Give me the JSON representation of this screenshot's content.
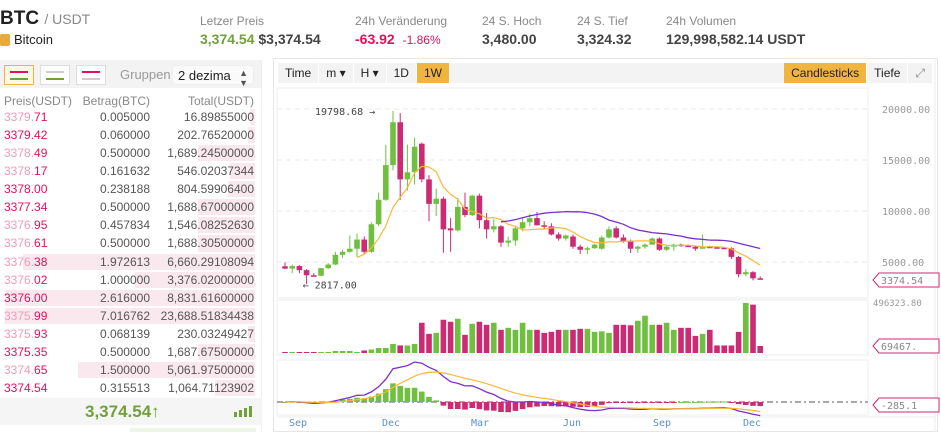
{
  "header": {
    "base": "BTC",
    "quote": "/ USDT",
    "coin_name": "Bitcoin",
    "stats": [
      {
        "label": "Letzer Preis",
        "value": "3,374.54",
        "value2": "$3,374.54"
      },
      {
        "label": "24h Veränderung",
        "value": "-63.92",
        "value2": "-1.86%"
      },
      {
        "label": "24 S. Hoch",
        "value": "3,480.00"
      },
      {
        "label": "24 S. Tief",
        "value": "3,324.32"
      },
      {
        "label": "24h Volumen",
        "value": "129,998,582.14 USDT"
      }
    ]
  },
  "orderbook": {
    "group_label": "Gruppen",
    "group_value": "2 dezima",
    "columns": [
      "Preis(USDT)",
      "Betrag(BTC)",
      "Total(USDT)"
    ],
    "asks": [
      {
        "pre": "3379.",
        "suf": "71",
        "dim": true,
        "amount": "0.005000",
        "total": "16.89855000",
        "depth": 0.02
      },
      {
        "pre": "3379.",
        "suf": "42",
        "dim": false,
        "amount": "0.060000",
        "total": "202.76520000",
        "depth": 0.03
      },
      {
        "pre": "3378.",
        "suf": "49",
        "dim": true,
        "amount": "0.500000",
        "total": "1,689.24500000",
        "depth": 0.23
      },
      {
        "pre": "3378.",
        "suf": "17",
        "dim": true,
        "amount": "0.161632",
        "total": "546.02037344",
        "depth": 0.1
      },
      {
        "pre": "3378.",
        "suf": "00",
        "dim": false,
        "amount": "0.238188",
        "total": "804.59906400",
        "depth": 0.11
      },
      {
        "pre": "3377.",
        "suf": "34",
        "dim": false,
        "amount": "0.500000",
        "total": "1,688.67000000",
        "depth": 0.23
      },
      {
        "pre": "3376.",
        "suf": "95",
        "dim": true,
        "amount": "0.457834",
        "total": "1,546.08252630",
        "depth": 0.23
      },
      {
        "pre": "3376.",
        "suf": "61",
        "dim": true,
        "amount": "0.500000",
        "total": "1,688.30500000",
        "depth": 0.23
      },
      {
        "pre": "3376.",
        "suf": "38",
        "dim": true,
        "amount": "1.972613",
        "total": "6,660.29108094",
        "depth": 0.93
      },
      {
        "pre": "3376.",
        "suf": "02",
        "dim": true,
        "amount": "1.000000",
        "total": "3,376.02000000",
        "depth": 0.48
      },
      {
        "pre": "3376.",
        "suf": "00",
        "dim": false,
        "amount": "2.616000",
        "total": "8,831.61600000",
        "depth": 1.0
      },
      {
        "pre": "3375.",
        "suf": "99",
        "dim": true,
        "amount": "7.016762",
        "total": "23,688.51834438",
        "depth": 1.0
      },
      {
        "pre": "3375.",
        "suf": "93",
        "dim": true,
        "amount": "0.068139",
        "total": "230.03249427",
        "depth": 0.03
      },
      {
        "pre": "3375.",
        "suf": "35",
        "dim": false,
        "amount": "0.500000",
        "total": "1,687.67500000",
        "depth": 0.23
      },
      {
        "pre": "3374.",
        "suf": "65",
        "dim": true,
        "amount": "1.500000",
        "total": "5,061.97500000",
        "depth": 0.71
      },
      {
        "pre": "3374.",
        "suf": "54",
        "dim": false,
        "amount": "0.315513",
        "total": "1,064.71123902",
        "depth": 0.16
      }
    ],
    "last_price": "3,374.54↑"
  },
  "chart": {
    "toolbar": [
      "Time",
      "m ▾",
      "H ▾",
      "1D",
      "1W"
    ],
    "active_interval": "1W",
    "view_buttons": [
      "Candlesticks",
      "Tiefe"
    ],
    "active_view": "Candlesticks",
    "colors": {
      "up": "#70c040",
      "down": "#cc2a73",
      "ma_short": "#f8b83a",
      "ma_long": "#7b2fcf",
      "accent": "#f0b541"
    }
  },
  "chart_data": {
    "type": "candlestick",
    "interval": "1W",
    "price_ticks": [
      "5000.00",
      "10000.00",
      "15000.00",
      "20000.00"
    ],
    "x_labels": [
      "Sep",
      "Dec",
      "Mar",
      "Jun",
      "Sep",
      "Dec"
    ],
    "high_marker": "19798.68",
    "low_marker": "2817.00",
    "last_price_tag": "3374.54",
    "volume_max_label": "496323.80",
    "volume_tag": "69467.",
    "macd_tag": "-285.1",
    "ohlc": [
      [
        4580,
        4980,
        4300,
        4350
      ],
      [
        4350,
        4750,
        3900,
        4600
      ],
      [
        4600,
        4700,
        3900,
        4200
      ],
      [
        4200,
        4300,
        2817,
        3700
      ],
      [
        3700,
        3900,
        3600,
        3650
      ],
      [
        3650,
        4400,
        3600,
        4400
      ],
      [
        4400,
        4900,
        4300,
        4750
      ],
      [
        4750,
        6000,
        4700,
        5700
      ],
      [
        5700,
        6200,
        5400,
        6000
      ],
      [
        6000,
        7600,
        5900,
        6300
      ],
      [
        6300,
        7800,
        5500,
        7200
      ],
      [
        7200,
        7500,
        5800,
        6000
      ],
      [
        6000,
        8900,
        5900,
        8700
      ],
      [
        8700,
        11800,
        8500,
        11100
      ],
      [
        11100,
        16500,
        11000,
        14500
      ],
      [
        14500,
        19798.68,
        14000,
        18700
      ],
      [
        18700,
        19600,
        11100,
        13100
      ],
      [
        13100,
        16500,
        12000,
        13800
      ],
      [
        13800,
        17200,
        12600,
        16300
      ],
      [
        16600,
        16700,
        12800,
        13100
      ],
      [
        13100,
        13500,
        9000,
        10700
      ],
      [
        10700,
        12200,
        9500,
        11200
      ],
      [
        11200,
        11400,
        5900,
        8200
      ],
      [
        8300,
        9300,
        6000,
        8100
      ],
      [
        8100,
        11300,
        8000,
        10400
      ],
      [
        10400,
        11800,
        9400,
        9600
      ],
      [
        9600,
        11600,
        9500,
        11500
      ],
      [
        11500,
        11700,
        8300,
        9100
      ],
      [
        9100,
        9800,
        7300,
        8200
      ],
      [
        8200,
        9200,
        7900,
        8500
      ],
      [
        8500,
        8600,
        6500,
        6900
      ],
      [
        6900,
        7500,
        6500,
        7100
      ],
      [
        7100,
        8500,
        6600,
        8300
      ],
      [
        8300,
        9300,
        8000,
        8900
      ],
      [
        8900,
        9700,
        8500,
        9300
      ],
      [
        9300,
        9900,
        8600,
        8600
      ],
      [
        8600,
        9000,
        8200,
        8500
      ],
      [
        8500,
        8800,
        7600,
        7700
      ],
      [
        7700,
        7900,
        7100,
        7300
      ],
      [
        7300,
        7700,
        7100,
        7600
      ],
      [
        7500,
        7700,
        6300,
        6500
      ],
      [
        6500,
        6700,
        5800,
        6200
      ],
      [
        6200,
        6500,
        5800,
        6350
      ],
      [
        6350,
        6800,
        6300,
        6700
      ],
      [
        6300,
        7600,
        6200,
        7400
      ],
      [
        7400,
        8500,
        7300,
        8200
      ],
      [
        8300,
        8500,
        7300,
        7400
      ],
      [
        7400,
        7700,
        6900,
        7000
      ],
      [
        7000,
        7200,
        5900,
        6300
      ],
      [
        6300,
        6600,
        5900,
        6500
      ],
      [
        6500,
        6800,
        6300,
        6700
      ],
      [
        6700,
        7400,
        6700,
        7300
      ],
      [
        7300,
        7400,
        6100,
        6200
      ],
      [
        6200,
        6600,
        6100,
        6500
      ],
      [
        6500,
        6800,
        6100,
        6700
      ],
      [
        6700,
        6800,
        6500,
        6600
      ],
      [
        6600,
        6700,
        6500,
        6500
      ],
      [
        6500,
        6600,
        6100,
        6300
      ],
      [
        6300,
        7700,
        6300,
        6500
      ],
      [
        6500,
        6600,
        6400,
        6450
      ],
      [
        6450,
        6500,
        6300,
        6400
      ],
      [
        6400,
        6500,
        6300,
        6350
      ],
      [
        6350,
        6450,
        5300,
        5500
      ],
      [
        5500,
        5600,
        3500,
        3800
      ],
      [
        3800,
        4300,
        3600,
        4000
      ],
      [
        4000,
        4100,
        3200,
        3400
      ],
      [
        3400,
        3600,
        3300,
        3374.54
      ]
    ],
    "volume": [
      3000,
      3000,
      3000,
      3000,
      3000,
      3000,
      3000,
      20000,
      20000,
      20000,
      10000,
      25000,
      35000,
      50000,
      50000,
      90000,
      75000,
      75000,
      90000,
      300000,
      190000,
      200000,
      330000,
      310000,
      340000,
      180000,
      290000,
      310000,
      280000,
      300000,
      230000,
      250000,
      230000,
      300000,
      230000,
      230000,
      200000,
      210000,
      230000,
      230000,
      230000,
      240000,
      240000,
      210000,
      215000,
      200000,
      280000,
      280000,
      275000,
      320000,
      370000,
      280000,
      280000,
      300000,
      230000,
      250000,
      250000,
      170000,
      190000,
      230000,
      75000,
      75000,
      75000,
      210000,
      496323.8,
      480000,
      69467
    ]
  }
}
